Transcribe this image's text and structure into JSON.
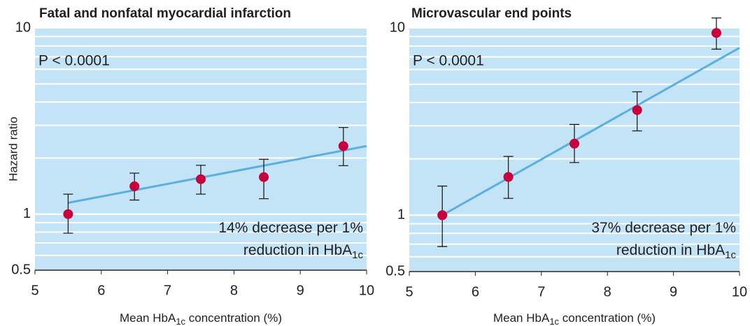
{
  "chart_data": [
    {
      "type": "scatter",
      "title": "Fatal and nonfatal myocardial infarction",
      "annotation_p": "P < 0.0001",
      "annotation": [
        [
          "14% decrease per 1%"
        ],
        [
          "reduction in HbA",
          "1c"
        ]
      ],
      "y_label": "Hazard ratio",
      "x_label": [
        "Mean HbA",
        "1c",
        " concentration (%)"
      ],
      "x": [
        5.5,
        6.5,
        7.5,
        8.45,
        9.65
      ],
      "values": [
        1.0,
        1.41,
        1.54,
        1.58,
        2.32
      ],
      "lower": [
        0.79,
        1.19,
        1.28,
        1.21,
        1.82
      ],
      "upper": [
        1.28,
        1.66,
        1.83,
        1.97,
        2.92
      ],
      "color": "#c8003c",
      "fit": {
        "x": [
          5.5,
          10
        ],
        "values": [
          1.15,
          2.32
        ],
        "color": "#5aaee0"
      },
      "xlim": [
        5,
        10
      ],
      "xticks": [
        5,
        6,
        7,
        8,
        9,
        10
      ],
      "ylim": [
        0.5,
        10
      ],
      "log_y": true,
      "yticks": [
        0.5,
        1,
        10
      ],
      "background": "#c2e4f6",
      "grid": true
    },
    {
      "type": "scatter",
      "title": "Microvascular end points",
      "annotation_p": "P < 0.0001",
      "annotation": [
        [
          "37% decrease per 1%"
        ],
        [
          "reduction in HbA",
          "1c"
        ]
      ],
      "x_label": [
        "Mean HbA",
        "1c",
        " concentration (%)"
      ],
      "x": [
        5.5,
        6.5,
        7.5,
        8.45,
        9.65
      ],
      "values": [
        1.0,
        1.6,
        2.41,
        3.64,
        9.4
      ],
      "lower": [
        0.68,
        1.23,
        1.91,
        2.82,
        7.7
      ],
      "upper": [
        1.43,
        2.06,
        3.05,
        4.56,
        11.3
      ],
      "color": "#c8003c",
      "fit": {
        "x": [
          5.5,
          10
        ],
        "values": [
          1.0,
          7.83
        ],
        "color": "#5aaee0"
      },
      "xlim": [
        5,
        10
      ],
      "xticks": [
        5,
        6,
        7,
        8,
        9,
        10
      ],
      "ylim": [
        0.5,
        10
      ],
      "log_y": true,
      "yticks": [
        0.5,
        1,
        10
      ],
      "background": "#c2e4f6",
      "grid": true
    }
  ]
}
